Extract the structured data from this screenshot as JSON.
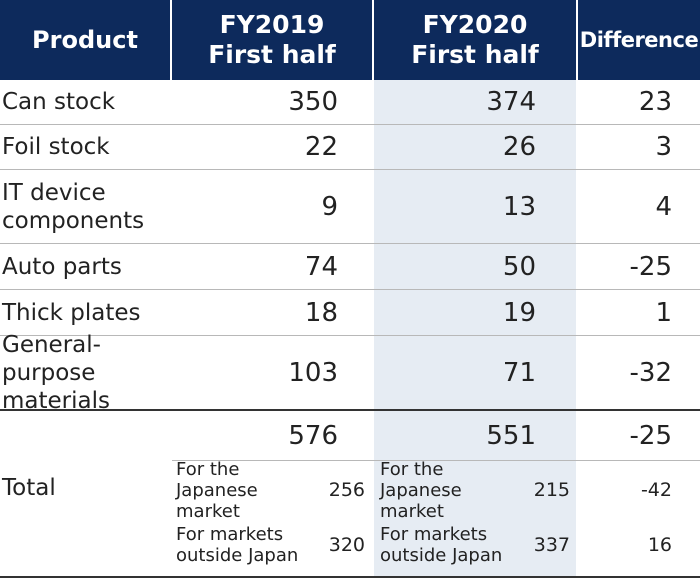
{
  "header": {
    "product": "Product",
    "fy2019_line1": "FY2019",
    "fy2019_line2": "First half",
    "fy2020_line1": "FY2020",
    "fy2020_line2": "First half",
    "difference": "Difference"
  },
  "rows": [
    {
      "name_line1": "Can stock",
      "name_line2": "",
      "fy2019": "350",
      "fy2020": "374",
      "diff": "23"
    },
    {
      "name_line1": "Foil stock",
      "name_line2": "",
      "fy2019": "22",
      "fy2020": "26",
      "diff": "3"
    },
    {
      "name_line1": "IT device",
      "name_line2": "components",
      "fy2019": "9",
      "fy2020": "13",
      "diff": "4"
    },
    {
      "name_line1": "Auto parts",
      "name_line2": "",
      "fy2019": "74",
      "fy2020": "50",
      "diff": "-25"
    },
    {
      "name_line1": "Thick plates",
      "name_line2": "",
      "fy2019": "18",
      "fy2020": "19",
      "diff": "1"
    },
    {
      "name_line1": "General-purpose",
      "name_line2": "materials",
      "fy2019": "103",
      "fy2020": "71",
      "diff": "-32"
    }
  ],
  "total": {
    "label": "Total",
    "fy2019": "576",
    "fy2020": "551",
    "diff": "-25",
    "japan": {
      "label_line1": "For the Japanese",
      "label_line2": "market",
      "fy2019": "256",
      "fy2020": "215",
      "diff": "-42"
    },
    "outside": {
      "label_line1": "For markets",
      "label_line2": "outside Japan",
      "fy2019": "320",
      "fy2020": "337",
      "diff": "16"
    }
  },
  "colors": {
    "header_bg": "#0d2a5c",
    "highlight_column": "#e6ecf3"
  }
}
